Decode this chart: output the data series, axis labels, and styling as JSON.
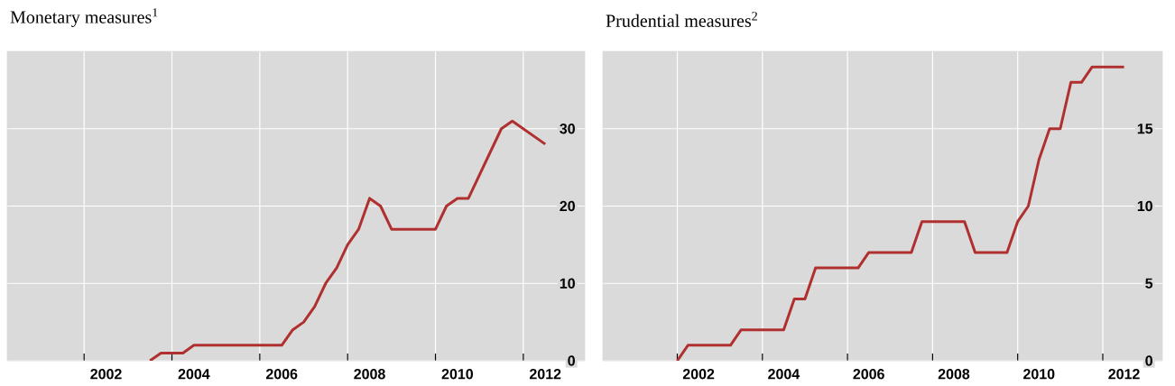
{
  "chart_data": [
    {
      "type": "line",
      "title": "Monetary measures$^{1}$",
      "x": [
        2003.5,
        2003.75,
        2004.25,
        2004.5,
        2006.5,
        2006.75,
        2007.0,
        2007.25,
        2007.5,
        2007.75,
        2008.0,
        2008.25,
        2008.5,
        2008.75,
        2009.0,
        2010.0,
        2010.25,
        2010.5,
        2010.75,
        2011.5,
        2011.75,
        2012.5
      ],
      "values": [
        0,
        1,
        1,
        2,
        2,
        4,
        5,
        7,
        10,
        12,
        15,
        17,
        21,
        20,
        17,
        17,
        20,
        21,
        21,
        30,
        31,
        28
      ],
      "color": "#b03030",
      "xlim": [
        2000.25,
        2013.4
      ],
      "ylim": [
        0,
        40
      ],
      "xticks": [
        {
          "value": 2002,
          "label": null
        },
        {
          "value": 2004,
          "label": null
        },
        {
          "value": 2006,
          "label": null
        },
        {
          "value": 2008,
          "label": null
        },
        {
          "value": 2010,
          "label": null
        },
        {
          "value": 2012,
          "label": null
        },
        {
          "value": 2002.5,
          "label": "2002"
        },
        {
          "value": 2004.5,
          "label": "2004"
        },
        {
          "value": 2006.5,
          "label": "2006"
        },
        {
          "value": 2008.5,
          "label": "2008"
        },
        {
          "value": 2010.5,
          "label": "2010"
        },
        {
          "value": 2012.5,
          "label": "2012"
        }
      ],
      "yticks": [
        0,
        10,
        20,
        30
      ],
      "grid": true
    },
    {
      "type": "line",
      "title": "Prudential measures$^{2}$",
      "x": [
        2002.0,
        2002.25,
        2003.25,
        2003.5,
        2004.5,
        2004.75,
        2005.0,
        2005.25,
        2006.25,
        2006.5,
        2007.5,
        2007.75,
        2008.75,
        2009.0,
        2009.75,
        2010.0,
        2010.25,
        2010.5,
        2010.75,
        2011.0,
        2011.25,
        2011.5,
        2011.75,
        2012.5
      ],
      "values": [
        0,
        1,
        1,
        2,
        2,
        4,
        4,
        6,
        6,
        7,
        7,
        9,
        9,
        7,
        7,
        9,
        10,
        13,
        15,
        15,
        18,
        18,
        19,
        19
      ],
      "color": "#b03030",
      "xlim": [
        2000.25,
        2013.4
      ],
      "ylim": [
        0,
        20
      ],
      "xticks": [
        {
          "value": 2002,
          "label": null
        },
        {
          "value": 2004,
          "label": null
        },
        {
          "value": 2006,
          "label": null
        },
        {
          "value": 2008,
          "label": null
        },
        {
          "value": 2010,
          "label": null
        },
        {
          "value": 2012,
          "label": null
        },
        {
          "value": 2002.5,
          "label": "2002"
        },
        {
          "value": 2004.5,
          "label": "2004"
        },
        {
          "value": 2006.5,
          "label": "2006"
        },
        {
          "value": 2008.5,
          "label": "2008"
        },
        {
          "value": 2010.5,
          "label": "2010"
        },
        {
          "value": 2012.5,
          "label": "2012"
        }
      ],
      "yticks": [
        0,
        5,
        10,
        15
      ],
      "grid": true
    }
  ]
}
